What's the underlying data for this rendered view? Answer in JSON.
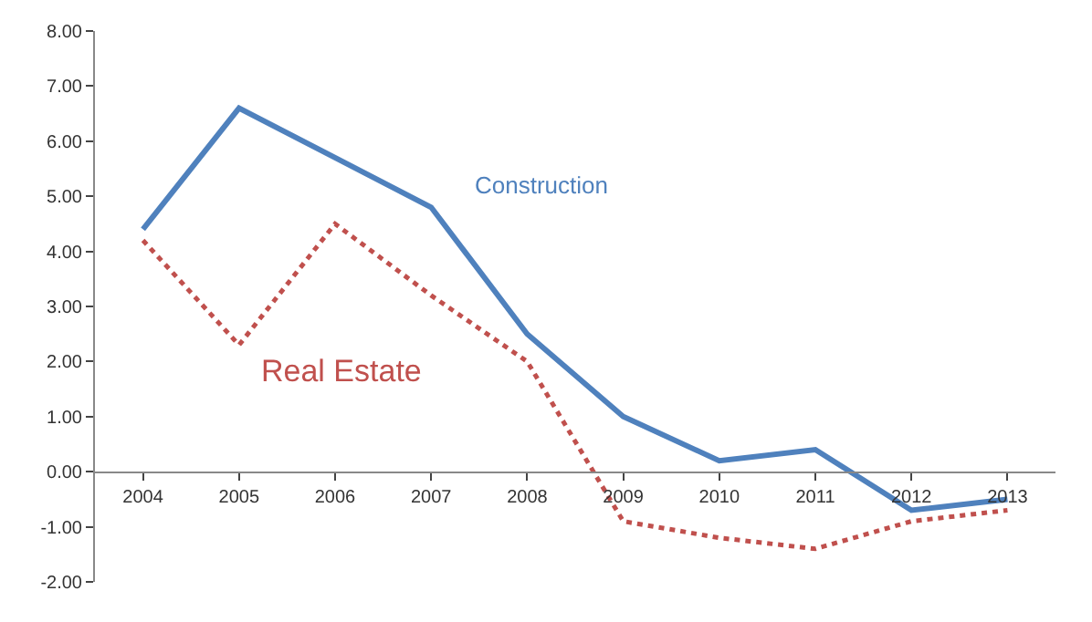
{
  "chart_data": {
    "type": "line",
    "categories": [
      "2004",
      "2005",
      "2006",
      "2007",
      "2008",
      "2009",
      "2010",
      "2011",
      "2012",
      "2013"
    ],
    "series": [
      {
        "name": "Construction",
        "color": "#4f81bd",
        "line_style": "solid",
        "values": [
          4.4,
          6.6,
          5.7,
          4.8,
          2.5,
          1.0,
          0.2,
          0.4,
          -0.7,
          -0.5
        ]
      },
      {
        "name": "Real Estate",
        "color": "#c0504d",
        "line_style": "dotted",
        "values": [
          4.2,
          2.3,
          4.5,
          3.2,
          2.0,
          -0.9,
          -1.2,
          -1.4,
          -0.9,
          -0.7
        ]
      }
    ],
    "ylim": [
      -2,
      8
    ],
    "yticks": [
      {
        "value": -2,
        "label": "-2.00"
      },
      {
        "value": -1,
        "label": "-1.00"
      },
      {
        "value": 0,
        "label": "0.00"
      },
      {
        "value": 1,
        "label": "1.00"
      },
      {
        "value": 2,
        "label": "2.00"
      },
      {
        "value": 3,
        "label": "3.00"
      },
      {
        "value": 4,
        "label": "4.00"
      },
      {
        "value": 5,
        "label": "5.00"
      },
      {
        "value": 6,
        "label": "6.00"
      },
      {
        "value": 7,
        "label": "7.00"
      },
      {
        "value": 8,
        "label": "8.00"
      }
    ],
    "legend": false
  }
}
